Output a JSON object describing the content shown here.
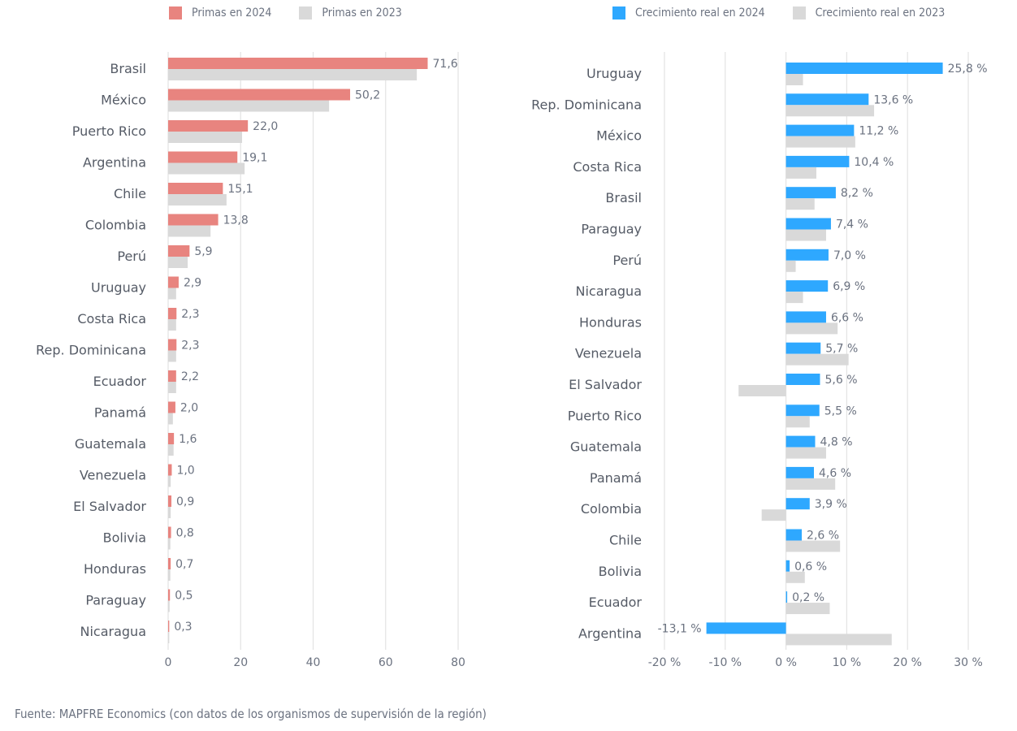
{
  "chart_data": [
    {
      "type": "bar",
      "orientation": "horizontal",
      "title": "",
      "xlabel": "",
      "ylabel": "",
      "xlim": [
        0,
        80
      ],
      "xticks": [
        "0",
        "20",
        "40",
        "60",
        "80"
      ],
      "grid": true,
      "legend_position": "top",
      "categories": [
        "Brasil",
        "México",
        "Puerto Rico",
        "Argentina",
        "Chile",
        "Colombia",
        "Perú",
        "Uruguay",
        "Costa Rica",
        "Rep. Dominicana",
        "Ecuador",
        "Panamá",
        "Guatemala",
        "Venezuela",
        "El Salvador",
        "Bolivia",
        "Honduras",
        "Paraguay",
        "Nicaragua"
      ],
      "series": [
        {
          "name": "Primas en 2024",
          "color": "#e8847f",
          "values": [
            71.6,
            50.2,
            22.0,
            19.1,
            15.1,
            13.8,
            5.9,
            2.9,
            2.3,
            2.3,
            2.2,
            2.0,
            1.6,
            1.0,
            0.9,
            0.8,
            0.7,
            0.5,
            0.3
          ],
          "labels": [
            "71,6",
            "50,2",
            "22,0",
            "19,1",
            "15,1",
            "13,8",
            "5,9",
            "2,9",
            "2,3",
            "2,3",
            "2,2",
            "2,0",
            "1,6",
            "1,0",
            "0,9",
            "0,8",
            "0,7",
            "0,5",
            "0,3"
          ]
        },
        {
          "name": "Primas en 2023",
          "color": "#d9d9d9",
          "values": [
            68.6,
            44.4,
            20.4,
            21.1,
            16.1,
            11.7,
            5.4,
            2.2,
            2.2,
            2.2,
            2.2,
            1.3,
            1.5,
            0.7,
            0.7,
            0.6,
            0.6,
            0.4,
            0.3
          ]
        }
      ]
    },
    {
      "type": "bar",
      "orientation": "horizontal",
      "title": "",
      "xlabel": "",
      "ylabel": "",
      "xlim": [
        -20,
        30
      ],
      "xticks": [
        "-20 %",
        "-10 %",
        "0 %",
        "10 %",
        "20 %",
        "30 %"
      ],
      "grid": true,
      "legend_position": "top",
      "categories": [
        "Uruguay",
        "Rep. Dominicana",
        "México",
        "Costa Rica",
        "Brasil",
        "Paraguay",
        "Perú",
        "Nicaragua",
        "Honduras",
        "Venezuela",
        "El Salvador",
        "Puerto Rico",
        "Guatemala",
        "Panamá",
        "Colombia",
        "Chile",
        "Bolivia",
        "Ecuador",
        "Argentina"
      ],
      "series": [
        {
          "name": "Crecimiento real en 2024",
          "color": "#2ea8ff",
          "values": [
            25.8,
            13.6,
            11.2,
            10.4,
            8.2,
            7.4,
            7.0,
            6.9,
            6.6,
            5.7,
            5.6,
            5.5,
            4.8,
            4.6,
            3.9,
            2.6,
            0.6,
            0.2,
            -13.1
          ],
          "labels": [
            "25,8 %",
            "13,6 %",
            "11,2 %",
            "10,4 %",
            "8,2 %",
            "7,4 %",
            "7,0 %",
            "6,9 %",
            "6,6 %",
            "5,7 %",
            "5,6 %",
            "5,5 %",
            "4,8 %",
            "4,6 %",
            "3,9 %",
            "2,6 %",
            "0,6 %",
            "0,2 %",
            "-13,1 %"
          ]
        },
        {
          "name": "Crecimiento real en 2023",
          "color": "#d9d9d9",
          "values": [
            2.8,
            14.5,
            11.4,
            5.0,
            4.7,
            6.6,
            1.6,
            2.8,
            8.5,
            10.3,
            -7.8,
            3.9,
            6.6,
            8.1,
            -4.0,
            8.9,
            3.1,
            7.2,
            17.4
          ]
        }
      ]
    }
  ],
  "footer": {
    "source": "Fuente: MAPFRE Economics (con datos de los organismos de supervisión de la región)"
  }
}
